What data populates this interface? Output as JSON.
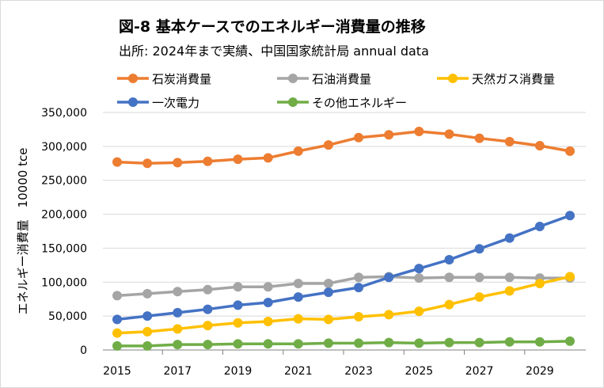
{
  "chart_data": {
    "type": "line",
    "title": "図-8  基本ケースでのエネルギー消費量の推移",
    "subtitle": "出所: 2024年まで実績、中国国家統計局 annual data",
    "xlabel": "",
    "ylabel": "エネルギー消費量　10000 tce",
    "x": [
      2015,
      2016,
      2017,
      2018,
      2019,
      2020,
      2021,
      2022,
      2023,
      2024,
      2025,
      2026,
      2027,
      2028,
      2029,
      2030
    ],
    "x_tick_labels": [
      "2015",
      "2017",
      "2019",
      "2021",
      "2023",
      "2025",
      "2027",
      "2029"
    ],
    "y_tick_labels": [
      "0",
      "50,000",
      "100,000",
      "150,000",
      "200,000",
      "250,000",
      "300,000",
      "350,000"
    ],
    "ylim": [
      0,
      350000
    ],
    "grid": "horizontal",
    "legend": "top",
    "series": [
      {
        "name": "石炭消費量",
        "color": "#ED7D31",
        "values": [
          277000,
          275000,
          276000,
          278000,
          281000,
          283000,
          293000,
          302000,
          313000,
          317000,
          322000,
          318000,
          312000,
          307000,
          301000,
          293000
        ]
      },
      {
        "name": "石油消費量",
        "color": "#A5A5A5",
        "values": [
          80000,
          83000,
          86000,
          89000,
          93000,
          93000,
          98000,
          98000,
          107000,
          108000,
          106000,
          107000,
          107000,
          107000,
          106000,
          106000
        ]
      },
      {
        "name": "天然ガス消費量",
        "color": "#FFC000",
        "values": [
          25000,
          27000,
          31000,
          36000,
          40000,
          42000,
          46000,
          45000,
          49000,
          52000,
          57000,
          67000,
          78000,
          87000,
          98000,
          108000
        ]
      },
      {
        "name": "一次電力",
        "color": "#4472C4",
        "values": [
          45000,
          50000,
          55000,
          60000,
          66000,
          70000,
          78000,
          85000,
          92000,
          107000,
          120000,
          133000,
          149000,
          165000,
          182000,
          198000
        ]
      },
      {
        "name": "その他エネルギー",
        "color": "#70AD47",
        "values": [
          6000,
          6000,
          8000,
          8000,
          9000,
          9000,
          9000,
          10000,
          10000,
          11000,
          10000,
          11000,
          11000,
          12000,
          12000,
          13000
        ]
      }
    ]
  }
}
